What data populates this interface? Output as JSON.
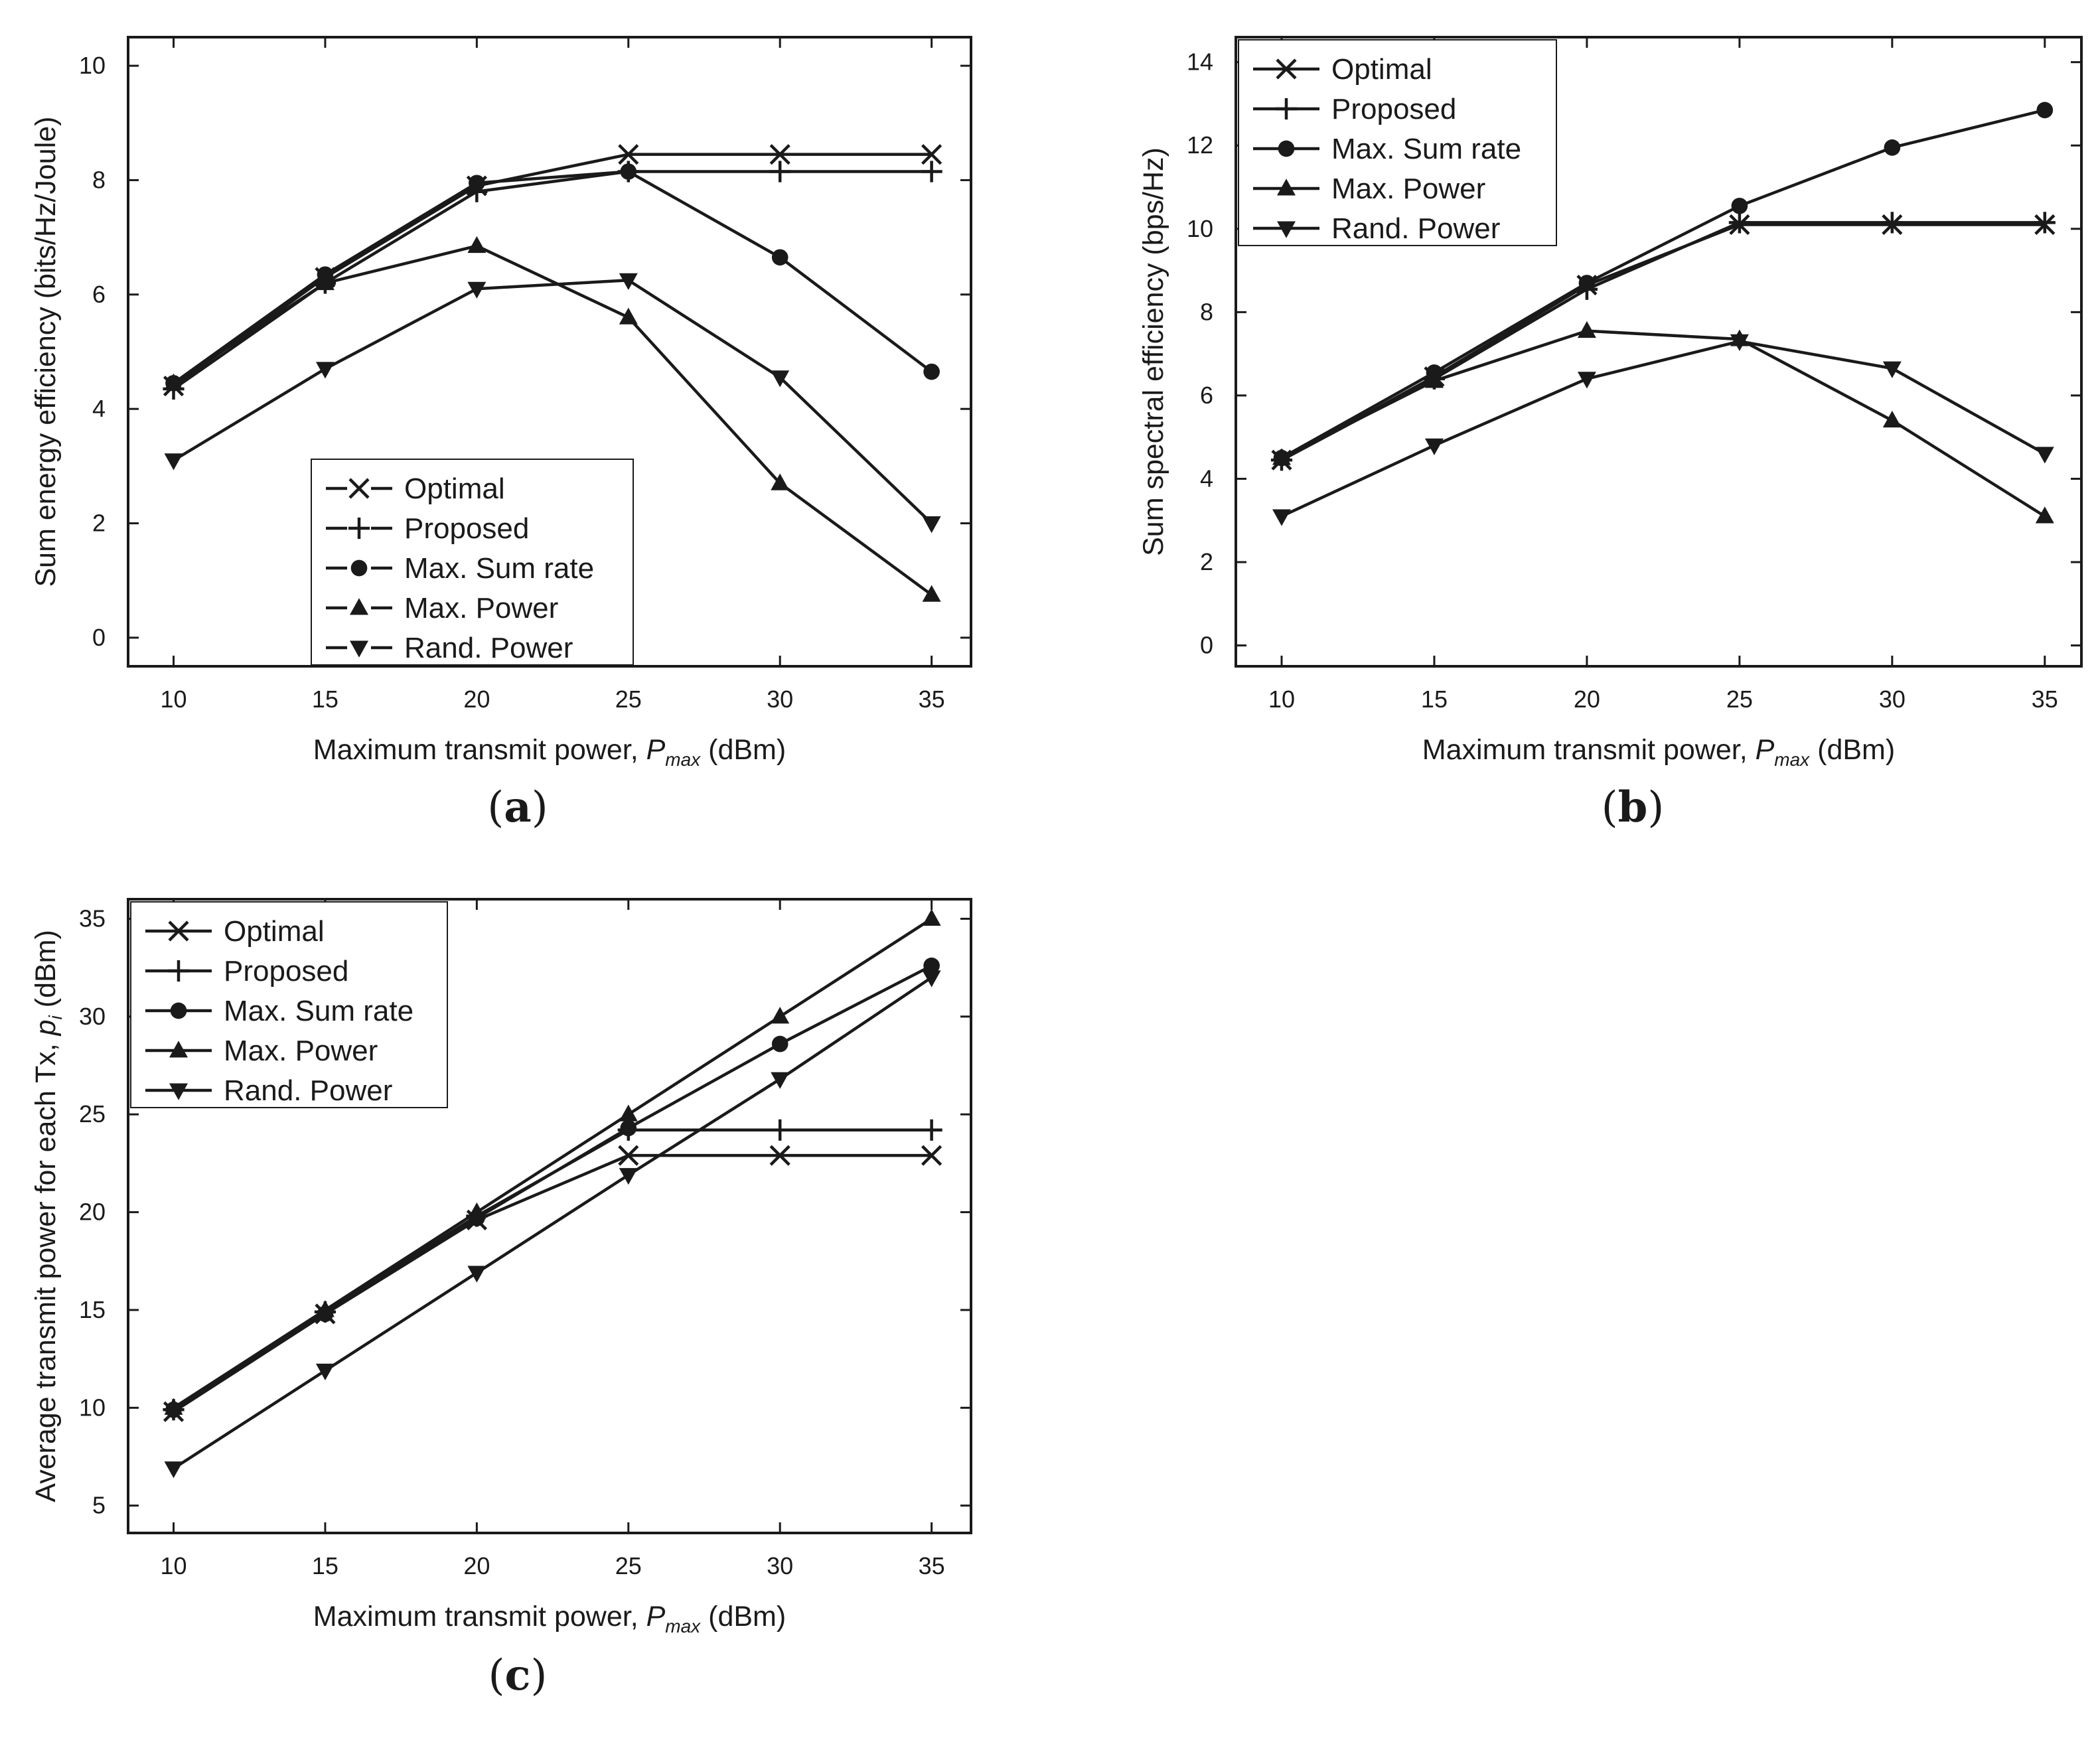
{
  "chart_data": [
    {
      "id": "a",
      "type": "line",
      "caption_label": "a",
      "xlabel_prefix": "Maximum transmit power, ",
      "xlabel_var": "P",
      "xlabel_sub": "max",
      "xlabel_suffix": " (dBm)",
      "ylabel": "Sum energy efficiency (bits/Hz/Joule)",
      "xlim": [
        8.5,
        36.3
      ],
      "ylim": [
        -0.5,
        10.5
      ],
      "xticks": [
        10,
        15,
        20,
        25,
        30,
        35
      ],
      "yticks": [
        0,
        2,
        4,
        6,
        8,
        10
      ],
      "legend_position": "bottom-center",
      "x": [
        10,
        15,
        20,
        25,
        30,
        35
      ],
      "series": [
        {
          "name": "Optimal",
          "marker": "x",
          "values": [
            4.4,
            6.3,
            7.9,
            8.45,
            8.45,
            8.45
          ]
        },
        {
          "name": "Proposed",
          "marker": "plus",
          "values": [
            4.35,
            6.2,
            7.8,
            8.15,
            8.15,
            8.15
          ]
        },
        {
          "name": "Max. Sum rate",
          "marker": "circle",
          "values": [
            4.45,
            6.35,
            7.95,
            8.15,
            6.65,
            4.65
          ]
        },
        {
          "name": "Max. Power",
          "marker": "triangle-up",
          "values": [
            4.45,
            6.2,
            6.85,
            5.6,
            2.7,
            0.75
          ]
        },
        {
          "name": "Rand. Power",
          "marker": "triangle-down",
          "values": [
            3.1,
            4.7,
            6.1,
            6.25,
            4.55,
            2.0
          ]
        }
      ]
    },
    {
      "id": "b",
      "type": "line",
      "caption_label": "b",
      "xlabel_prefix": "Maximum transmit power, ",
      "xlabel_var": "P",
      "xlabel_sub": "max",
      "xlabel_suffix": " (dBm)",
      "ylabel": "Sum spectral efficiency (bps/Hz)",
      "xlim": [
        8.5,
        36.2
      ],
      "ylim": [
        -0.5,
        14.6
      ],
      "xticks": [
        10,
        15,
        20,
        25,
        30,
        35
      ],
      "yticks": [
        0,
        2,
        4,
        6,
        8,
        10,
        12,
        14
      ],
      "legend_position": "top-left",
      "x": [
        10,
        15,
        20,
        25,
        30,
        35
      ],
      "series": [
        {
          "name": "Optimal",
          "marker": "x",
          "values": [
            4.45,
            6.45,
            8.65,
            10.1,
            10.1,
            10.1
          ]
        },
        {
          "name": "Proposed",
          "marker": "plus",
          "values": [
            4.45,
            6.4,
            8.55,
            10.15,
            10.15,
            10.15
          ]
        },
        {
          "name": "Max. Sum rate",
          "marker": "circle",
          "values": [
            4.5,
            6.55,
            8.7,
            10.55,
            11.95,
            12.85
          ]
        },
        {
          "name": "Max. Power",
          "marker": "triangle-up",
          "values": [
            4.5,
            6.35,
            7.55,
            7.35,
            5.4,
            3.1
          ]
        },
        {
          "name": "Rand. Power",
          "marker": "triangle-down",
          "values": [
            3.1,
            4.8,
            6.4,
            7.3,
            6.65,
            4.6
          ]
        }
      ]
    },
    {
      "id": "c",
      "type": "line",
      "caption_label": "c",
      "xlabel_prefix": "Maximum transmit power, ",
      "xlabel_var": "P",
      "xlabel_sub": "max",
      "xlabel_suffix": " (dBm)",
      "ylabel_prefix": "Average transmit power for each Tx, ",
      "ylabel_var": "p",
      "ylabel_sub": "i",
      "ylabel_suffix": " (dBm)",
      "xlim": [
        8.5,
        36.3
      ],
      "ylim": [
        3.6,
        36.0
      ],
      "xticks": [
        10,
        15,
        20,
        25,
        30,
        35
      ],
      "yticks": [
        5,
        10,
        15,
        20,
        25,
        30,
        35
      ],
      "legend_position": "top-left",
      "x": [
        10,
        15,
        20,
        25,
        30,
        35
      ],
      "series": [
        {
          "name": "Optimal",
          "marker": "x",
          "values": [
            9.8,
            14.8,
            19.6,
            22.9,
            22.9,
            22.9
          ]
        },
        {
          "name": "Proposed",
          "marker": "plus",
          "values": [
            9.9,
            14.9,
            19.8,
            24.2,
            24.2,
            24.2
          ]
        },
        {
          "name": "Max. Sum rate",
          "marker": "circle",
          "values": [
            9.9,
            14.8,
            19.7,
            24.3,
            28.6,
            32.6
          ]
        },
        {
          "name": "Max. Power",
          "marker": "triangle-up",
          "values": [
            10.0,
            15.0,
            20.0,
            25.0,
            30.0,
            35.0
          ]
        },
        {
          "name": "Rand. Power",
          "marker": "triangle-down",
          "values": [
            6.9,
            11.9,
            16.9,
            21.9,
            26.8,
            32.0
          ]
        }
      ]
    }
  ],
  "style": {
    "line_color": "#1a1a1a",
    "frame_color": "#1a1a1a",
    "background": "#ffffff"
  }
}
